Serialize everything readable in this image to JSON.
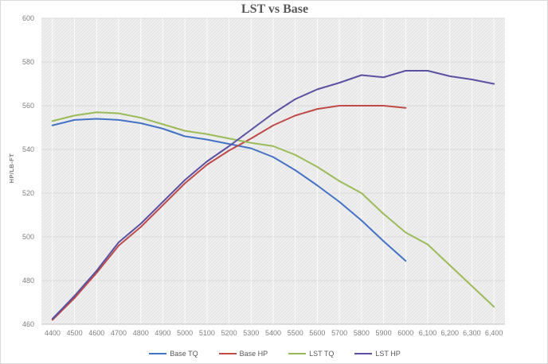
{
  "chart_data": {
    "type": "line",
    "title": "LST vs Base",
    "xlabel": "",
    "ylabel": "HP/LB-FT",
    "ylim": [
      460,
      600
    ],
    "y_ticks": [
      460,
      480,
      500,
      520,
      540,
      560,
      580,
      600
    ],
    "x_categories": [
      4400,
      4500,
      4600,
      4700,
      4800,
      4900,
      5000,
      5100,
      5200,
      5300,
      5400,
      5500,
      5600,
      5700,
      5800,
      5900,
      6000,
      6100,
      6200,
      6300,
      6400
    ],
    "x_tick_labels": [
      "4400",
      "4500",
      "4600",
      "4700",
      "4800",
      "4900",
      "5000",
      "5100",
      "5200",
      "5300",
      "5400",
      "5500",
      "5600",
      "5700",
      "5800",
      "5900",
      "6000",
      "6,100",
      "6,200",
      "6,300",
      "6,400"
    ],
    "x_axis_range": [
      4350,
      6450
    ],
    "grid": true,
    "legend_position": "bottom",
    "plot_colors": {
      "plot_fill": "#efefef",
      "hatch_line": "#dedede",
      "h_gridline": "#d9d9d9",
      "v_gridline": "#fbfbfb",
      "axis_line": "#c6c6c6",
      "tick_text": "#7f7f7f",
      "title_text": "#595959"
    },
    "series": [
      {
        "name": "Base TQ",
        "color": "#4472c4",
        "values": [
          551,
          553.5,
          554,
          553.5,
          552,
          549.5,
          546,
          544.5,
          542.5,
          540.5,
          536.5,
          530.5,
          523.5,
          516,
          507.5,
          498,
          489
        ]
      },
      {
        "name": "Base HP",
        "color": "#be4b48",
        "values": [
          462,
          472,
          483.5,
          496,
          504.5,
          514.5,
          524.5,
          533,
          539.5,
          545,
          551,
          555.5,
          558.5,
          560,
          560,
          560,
          559
        ]
      },
      {
        "name": "LST TQ",
        "color": "#9bbb59",
        "values": [
          553,
          555.5,
          557,
          556.5,
          554.5,
          551.5,
          548.5,
          547,
          545,
          543,
          541.5,
          537.5,
          532,
          525.5,
          520,
          510.5,
          502,
          496.5,
          487,
          477.5,
          468
        ]
      },
      {
        "name": "LST HP",
        "color": "#5a51a2",
        "values": [
          462.5,
          473,
          484.5,
          497.5,
          506,
          516,
          526,
          534.5,
          541.5,
          549,
          556.5,
          563,
          567.5,
          570.5,
          574,
          573,
          576,
          576,
          573.5,
          572,
          570
        ]
      }
    ]
  }
}
